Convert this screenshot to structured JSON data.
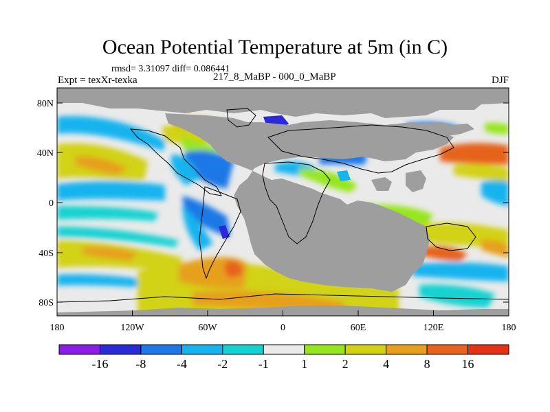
{
  "title": "Ocean Potential Temperature at 5m (in C)",
  "subtitle": {
    "rmsd_text": "rmsd= 3.31097 diff= 0.086441",
    "experiment": "Expt = texXr-texka",
    "period": "217_8_MaBP - 000_0_MaBP",
    "season": "DJF"
  },
  "axes": {
    "x_ticks": [
      "180",
      "120W",
      "60W",
      "0",
      "60E",
      "120E",
      "180"
    ],
    "y_ticks": [
      "80N",
      "40N",
      "0",
      "40S",
      "80S"
    ]
  },
  "colorbar": {
    "labels": [
      "-16",
      "-8",
      "-4",
      "-2",
      "-1",
      "1",
      "2",
      "4",
      "8",
      "16"
    ],
    "colors": [
      "#8a1ee8",
      "#2a2ad8",
      "#1e78e6",
      "#14b4ee",
      "#14d2d2",
      "#eaeaea",
      "#96e61e",
      "#d2d214",
      "#e6a01e",
      "#e6641e",
      "#e63214"
    ]
  },
  "map": {
    "land_color": "#9e9e9e",
    "ocean_background": "#eaeaea"
  }
}
